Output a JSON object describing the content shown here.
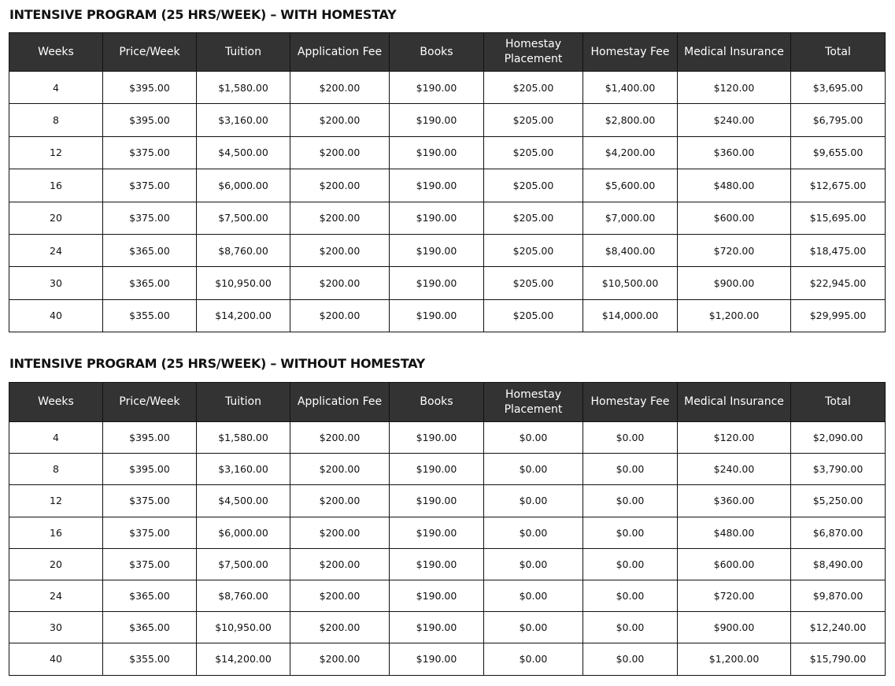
{
  "columns": [
    "Weeks",
    "Price/Week",
    "Tuition",
    "Application Fee",
    "Books",
    "Homestay Placement",
    "Homestay Fee",
    "Medical Insurance",
    "Total"
  ],
  "tables": [
    {
      "title": "INTENSIVE PROGRAM (25 HRS/WEEK) – WITH HOMESTAY",
      "rows": [
        [
          "4",
          "$395.00",
          "$1,580.00",
          "$200.00",
          "$190.00",
          "$205.00",
          "$1,400.00",
          "$120.00",
          "$3,695.00"
        ],
        [
          "8",
          "$395.00",
          "$3,160.00",
          "$200.00",
          "$190.00",
          "$205.00",
          "$2,800.00",
          "$240.00",
          "$6,795.00"
        ],
        [
          "12",
          "$375.00",
          "$4,500.00",
          "$200.00",
          "$190.00",
          "$205.00",
          "$4,200.00",
          "$360.00",
          "$9,655.00"
        ],
        [
          "16",
          "$375.00",
          "$6,000.00",
          "$200.00",
          "$190.00",
          "$205.00",
          "$5,600.00",
          "$480.00",
          "$12,675.00"
        ],
        [
          "20",
          "$375.00",
          "$7,500.00",
          "$200.00",
          "$190.00",
          "$205.00",
          "$7,000.00",
          "$600.00",
          "$15,695.00"
        ],
        [
          "24",
          "$365.00",
          "$8,760.00",
          "$200.00",
          "$190.00",
          "$205.00",
          "$8,400.00",
          "$720.00",
          "$18,475.00"
        ],
        [
          "30",
          "$365.00",
          "$10,950.00",
          "$200.00",
          "$190.00",
          "$205.00",
          "$10,500.00",
          "$900.00",
          "$22,945.00"
        ],
        [
          "40",
          "$355.00",
          "$14,200.00",
          "$200.00",
          "$190.00",
          "$205.00",
          "$14,000.00",
          "$1,200.00",
          "$29,995.00"
        ]
      ]
    },
    {
      "title": "INTENSIVE PROGRAM (25 HRS/WEEK) – WITHOUT HOMESTAY",
      "rows": [
        [
          "4",
          "$395.00",
          "$1,580.00",
          "$200.00",
          "$190.00",
          "$0.00",
          "$0.00",
          "$120.00",
          "$2,090.00"
        ],
        [
          "8",
          "$395.00",
          "$3,160.00",
          "$200.00",
          "$190.00",
          "$0.00",
          "$0.00",
          "$240.00",
          "$3,790.00"
        ],
        [
          "12",
          "$375.00",
          "$4,500.00",
          "$200.00",
          "$190.00",
          "$0.00",
          "$0.00",
          "$360.00",
          "$5,250.00"
        ],
        [
          "16",
          "$375.00",
          "$6,000.00",
          "$200.00",
          "$190.00",
          "$0.00",
          "$0.00",
          "$480.00",
          "$6,870.00"
        ],
        [
          "20",
          "$375.00",
          "$7,500.00",
          "$200.00",
          "$190.00",
          "$0.00",
          "$0.00",
          "$600.00",
          "$8,490.00"
        ],
        [
          "24",
          "$365.00",
          "$8,760.00",
          "$200.00",
          "$190.00",
          "$0.00",
          "$0.00",
          "$720.00",
          "$9,870.00"
        ],
        [
          "30",
          "$365.00",
          "$10,950.00",
          "$200.00",
          "$190.00",
          "$0.00",
          "$0.00",
          "$900.00",
          "$12,240.00"
        ],
        [
          "40",
          "$355.00",
          "$14,200.00",
          "$200.00",
          "$190.00",
          "$0.00",
          "$0.00",
          "$1,200.00",
          "$15,790.00"
        ]
      ]
    }
  ],
  "colors": {
    "header_bg": "#333333",
    "header_text": "#ffffff",
    "border": "#111111"
  }
}
